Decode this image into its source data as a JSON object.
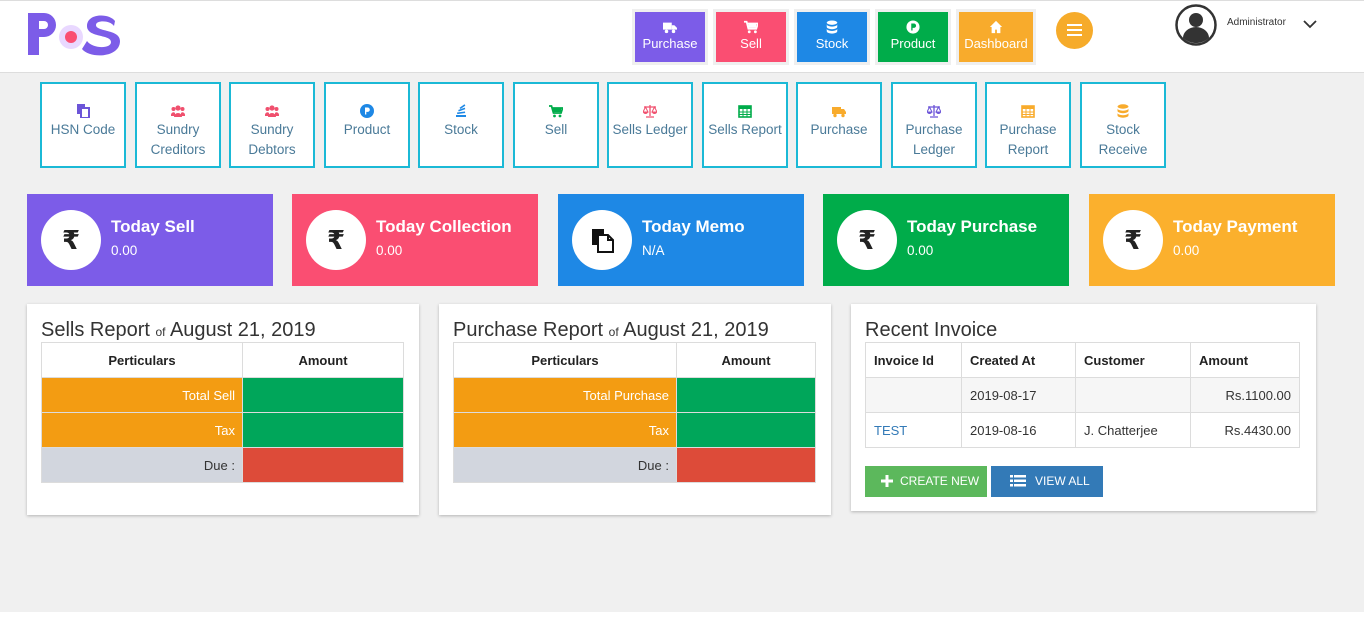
{
  "header": {
    "logo_text": "POS",
    "nav": [
      {
        "label": "Purchase",
        "icon": "truck-icon",
        "color": "#7c5ce8"
      },
      {
        "label": "Sell",
        "icon": "cart-icon",
        "color": "#fa4e72"
      },
      {
        "label": "Stock",
        "icon": "database-icon",
        "color": "#1e88e5"
      },
      {
        "label": "Product",
        "icon": "product-p-icon",
        "color": "#00ac4a"
      },
      {
        "label": "Dashboard",
        "icon": "home-icon",
        "color": "#f8ab2c"
      }
    ],
    "user_name": "Administrator"
  },
  "quick_links": [
    {
      "label": "HSN Code",
      "icon": "files-icon",
      "icon_color": "#6c55d8"
    },
    {
      "label": "Sundry Creditors",
      "icon": "users-icon",
      "icon_color": "#f0506e"
    },
    {
      "label": "Sundry Debtors",
      "icon": "users-icon",
      "icon_color": "#f0506e"
    },
    {
      "label": "Product",
      "icon": "product-p-icon",
      "icon_color": "#1e88e5"
    },
    {
      "label": "Stock",
      "icon": "stack-icon",
      "icon_color": "#1e88e5"
    },
    {
      "label": "Sell",
      "icon": "cart-icon",
      "icon_color": "#00ac4a"
    },
    {
      "label": "Sells Ledger",
      "icon": "balance-scale-icon",
      "icon_color": "#f0506e"
    },
    {
      "label": "Sells Report",
      "icon": "calendar-icon",
      "icon_color": "#00ac4a"
    },
    {
      "label": "Purchase",
      "icon": "truck-icon",
      "icon_color": "#f8ab2c"
    },
    {
      "label": "Purchase Ledger",
      "icon": "balance-scale-icon",
      "icon_color": "#6c55d8"
    },
    {
      "label": "Purchase Report",
      "icon": "calendar-icon",
      "icon_color": "#f8ab2c"
    },
    {
      "label": "Stock Receive",
      "icon": "database-icon",
      "icon_color": "#f8ab2c"
    }
  ],
  "stats": [
    {
      "title": "Today Sell",
      "value": "0.00",
      "icon": "rupee-icon",
      "symbol": "₹",
      "color": "#7c5ce8"
    },
    {
      "title": "Today Collection",
      "value": "0.00",
      "icon": "rupee-icon",
      "symbol": "₹",
      "color": "#fa4e72"
    },
    {
      "title": "Today Memo",
      "value": "N/A",
      "icon": "memo-icon",
      "symbol": "",
      "color": "#1e88e5"
    },
    {
      "title": "Today Purchase",
      "value": "0.00",
      "icon": "rupee-icon",
      "symbol": "₹",
      "color": "#00ac4a"
    },
    {
      "title": "Today Payment",
      "value": "0.00",
      "icon": "rupee-icon",
      "symbol": "₹",
      "color": "#fbb02d"
    }
  ],
  "sells_report": {
    "title": "Sells Report",
    "of": "of",
    "date": "August 21, 2019",
    "col_particulars": "Perticulars",
    "col_amount": "Amount",
    "rows": [
      {
        "label": "Total Sell",
        "amount": ""
      },
      {
        "label": "Tax",
        "amount": ""
      },
      {
        "label": "Due :",
        "amount": ""
      }
    ]
  },
  "purchase_report": {
    "title": "Purchase Report",
    "of": "of",
    "date": "August 21, 2019",
    "col_particulars": "Perticulars",
    "col_amount": "Amount",
    "rows": [
      {
        "label": "Total Purchase",
        "amount": ""
      },
      {
        "label": "Tax",
        "amount": ""
      },
      {
        "label": "Due :",
        "amount": ""
      }
    ]
  },
  "recent_invoice": {
    "title": "Recent Invoice",
    "columns": [
      "Invoice Id",
      "Created At",
      "Customer",
      "Amount"
    ],
    "rows": [
      {
        "id": "",
        "created": "2019-08-17",
        "customer": "",
        "amount": "Rs.1100.00"
      },
      {
        "id": "TEST",
        "created": "2019-08-16",
        "customer": "J. Chatterjee",
        "amount": "Rs.4430.00"
      }
    ],
    "create_label": "CREATE NEW",
    "view_all_label": "VIEW ALL"
  },
  "colors": {
    "report_label_bg": "#f39c12",
    "report_amount_bg": "#00a65a",
    "due_label_bg": "#d2d6de",
    "due_amount_bg": "#dd4b39",
    "create_btn": "#5cb85c",
    "view_btn": "#337ab7"
  }
}
